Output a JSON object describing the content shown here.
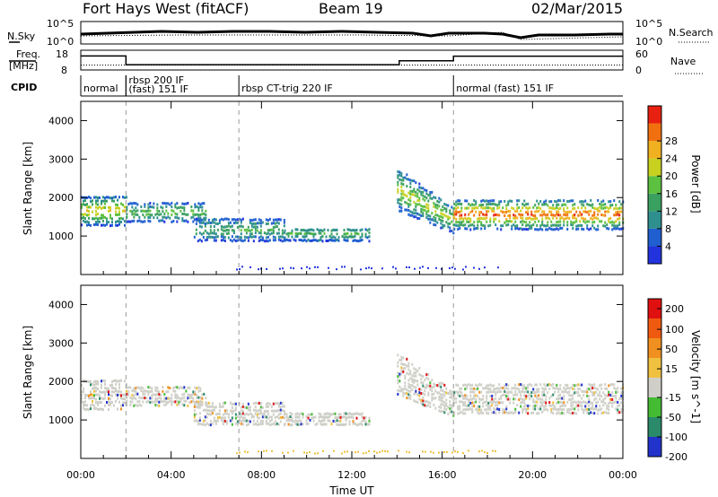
{
  "header": {
    "station": "Fort Hays West (fitACF)",
    "beam": "Beam 19",
    "date": "02/Mar/2015"
  },
  "noise_panel": {
    "left_label": "N.Sky",
    "right_label": "N.Search",
    "left_ticks": [
      "10^5",
      "10^0"
    ],
    "right_ticks": [
      "10^5",
      "10^0"
    ]
  },
  "freq_panel": {
    "left_label_1": "Freq.",
    "left_label_2": "[MHz]",
    "left_ticks": [
      "18",
      "8"
    ],
    "right_label": "Nave",
    "right_ticks": [
      "60",
      "0"
    ],
    "freq_steps": [
      {
        "t": 0.0,
        "f": 17.8
      },
      {
        "t": 2.0,
        "f": 11.7
      },
      {
        "t": 14.1,
        "f": 14.4
      },
      {
        "t": 16.5,
        "f": 17.6
      }
    ],
    "nave_level": 0.25
  },
  "cpid": {
    "label": "CPID",
    "segments": [
      {
        "t": 0.0,
        "text": "normal"
      },
      {
        "t": 2.0,
        "text": "rbsp 200 IF"
      },
      {
        "t": 2.0,
        "text": "(fast) 151 IF"
      },
      {
        "t": 7.0,
        "text": "rbsp CT-trig 220 IF"
      },
      {
        "t": 16.5,
        "text": "normal (fast) 151 IF"
      }
    ]
  },
  "axes": {
    "ylabel": "Slant Range [km]",
    "yticks": [
      1000,
      2000,
      3000,
      4000
    ],
    "xlabel": "Time UT",
    "xticks": [
      "00:00",
      "04:00",
      "08:00",
      "12:00",
      "16:00",
      "20:00",
      "00:00"
    ],
    "mode_change_hours": [
      2.0,
      7.0,
      16.5
    ]
  },
  "chart_data": [
    {
      "type": "heatmap",
      "title": "Power",
      "colorbar_label": "Power [dB]",
      "colorbar_ticks": [
        4,
        8,
        12,
        16,
        20,
        24,
        28
      ],
      "color_scale": [
        "#2233dd",
        "#1f5fd0",
        "#2f8f8f",
        "#3aa060",
        "#5cc040",
        "#c8d020",
        "#f0b020",
        "#f07010",
        "#e82010"
      ],
      "x_range_hours": [
        0,
        24
      ],
      "y_range_km": [
        0,
        4500
      ],
      "echo_bands": [
        {
          "t0": 0.0,
          "t1": 2.0,
          "lo": 1300,
          "hi": 2100,
          "peak": 18
        },
        {
          "t0": 2.0,
          "t1": 5.5,
          "lo": 1400,
          "hi": 1900,
          "peak": 12
        },
        {
          "t0": 5.0,
          "t1": 9.0,
          "lo": 900,
          "hi": 1500,
          "peak": 10
        },
        {
          "t0": 9.0,
          "t1": 12.8,
          "lo": 900,
          "hi": 1300,
          "peak": 10
        },
        {
          "t0": 14.0,
          "t1": 16.5,
          "lo": 1100,
          "hi": 2800,
          "peak": 16
        },
        {
          "t0": 16.5,
          "t1": 24.0,
          "lo": 1200,
          "hi": 2000,
          "peak": 24
        }
      ]
    },
    {
      "type": "heatmap",
      "title": "Velocity",
      "colorbar_label": "Velocity [m s^-1]",
      "colorbar_ticks": [
        200,
        100,
        50,
        15,
        -15,
        -50,
        -100,
        -200
      ],
      "color_scale": [
        "#2233cc",
        "#2a8a6a",
        "#44bb33",
        "#cfcfc8",
        "#f0c040",
        "#f09020",
        "#f05a10",
        "#e01010"
      ],
      "x_range_hours": [
        0,
        24
      ],
      "y_range_km": [
        0,
        4500
      ]
    }
  ]
}
